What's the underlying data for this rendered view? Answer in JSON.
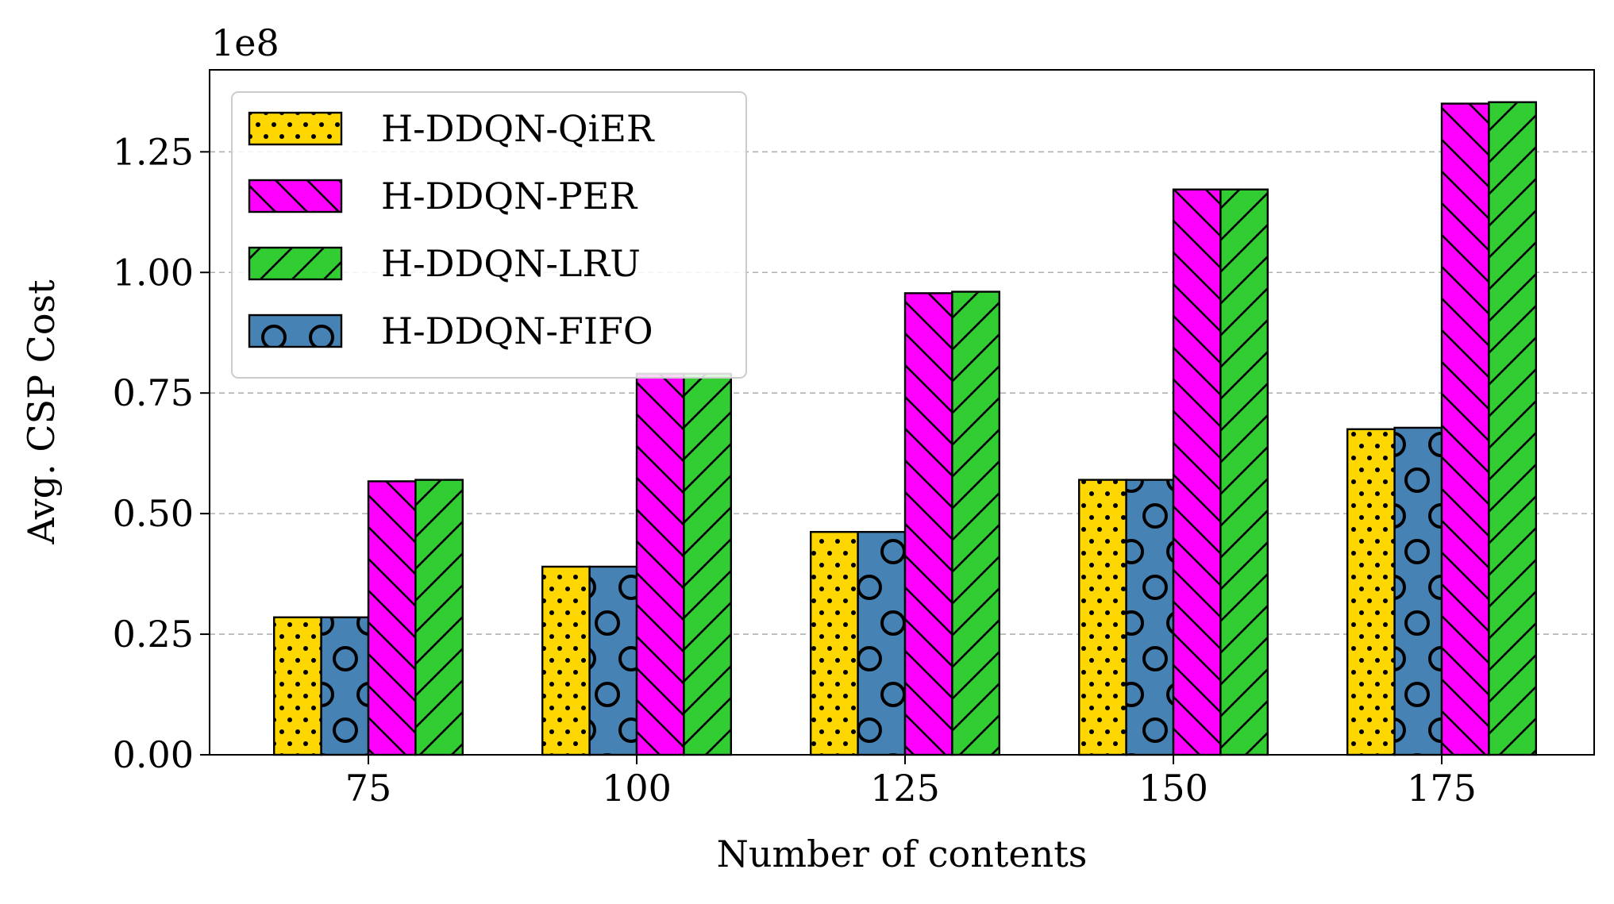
{
  "chart_data": {
    "type": "bar",
    "title": "",
    "xlabel": "Number of contents",
    "ylabel": "Avg. CSP Cost",
    "y_offset_label": "1e8",
    "y_scale": 100000000,
    "categories": [
      "75",
      "100",
      "125",
      "150",
      "175"
    ],
    "yticks": [
      0.0,
      0.25,
      0.5,
      0.75,
      1.0,
      1.25
    ],
    "ytick_labels": [
      "0.00",
      "0.25",
      "0.50",
      "0.75",
      "1.00",
      "1.25"
    ],
    "ylim": [
      0,
      1.42
    ],
    "grid": "y-dashed",
    "legend_position": "top-left",
    "series": [
      {
        "name": "H-DDQN-QiER",
        "values": [
          0.285,
          0.39,
          0.462,
          0.57,
          0.675
        ],
        "color": "#FFD700",
        "hatch": "dots"
      },
      {
        "name": "H-DDQN-FIFO",
        "values": [
          0.285,
          0.39,
          0.462,
          0.57,
          0.678
        ],
        "color": "#4682B4",
        "hatch": "circles"
      },
      {
        "name": "H-DDQN-PER",
        "values": [
          0.567,
          0.79,
          0.957,
          1.172,
          1.35
        ],
        "color": "#FF00FF",
        "hatch": "backslash"
      },
      {
        "name": "H-DDQN-LRU",
        "values": [
          0.57,
          0.79,
          0.96,
          1.172,
          1.353
        ],
        "color": "#32CD32",
        "hatch": "slash"
      }
    ],
    "legend_order": [
      "H-DDQN-QiER",
      "H-DDQN-PER",
      "H-DDQN-LRU",
      "H-DDQN-FIFO"
    ]
  }
}
